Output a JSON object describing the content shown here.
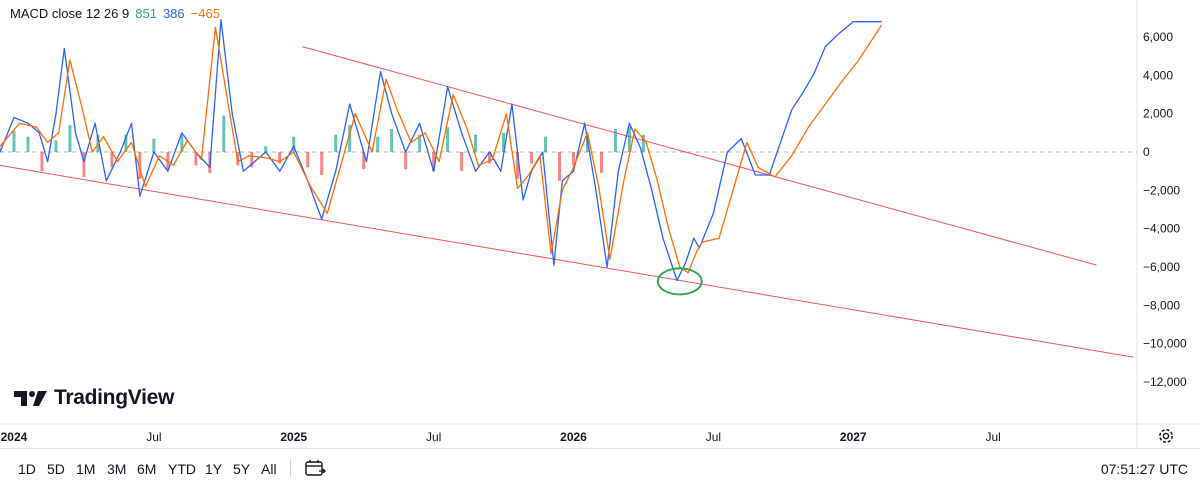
{
  "legend": {
    "label": "MACD close 12 26 9",
    "hist": "851",
    "macd": "386",
    "signal": "−465",
    "colors": {
      "hist": "#26a69a",
      "macd": "#2962ff",
      "signal": "#ff6d00"
    }
  },
  "brand": {
    "name": "TradingView"
  },
  "toolbar": {
    "timeframes": [
      "1D",
      "5D",
      "1M",
      "3M",
      "6M",
      "YTD",
      "1Y",
      "5Y",
      "All"
    ],
    "time": "07:51:27 UTC"
  },
  "icons": {
    "calendar": "calendar-icon",
    "settings": "gear-icon",
    "logo": "tradingview-logo-icon"
  },
  "chart_data": {
    "type": "line",
    "x_ticks": [
      "2024",
      "Jul",
      "2025",
      "Jul",
      "2026",
      "Jul",
      "2027",
      "Jul"
    ],
    "y_ticks": [
      "6,000",
      "4,000",
      "2,000",
      "0",
      "−2,000",
      "−4,000",
      "−6,000",
      "−8,000",
      "−10,000",
      "−12,000"
    ],
    "ylim": [
      -13500,
      8000
    ],
    "series": [
      {
        "name": "MACD",
        "color": "#2962ff",
        "x": [
          2023.95,
          2024.0,
          2024.05,
          2024.09,
          2024.12,
          2024.15,
          2024.18,
          2024.22,
          2024.25,
          2024.29,
          2024.33,
          2024.38,
          2024.42,
          2024.45,
          2024.5,
          2024.55,
          2024.6,
          2024.65,
          2024.7,
          2024.74,
          2024.78,
          2024.82,
          2024.86,
          2024.9,
          2024.95,
          2025.0,
          2025.05,
          2025.1,
          2025.15,
          2025.2,
          2025.26,
          2025.31,
          2025.35,
          2025.4,
          2025.45,
          2025.5,
          2025.55,
          2025.6,
          2025.65,
          2025.7,
          2025.74,
          2025.78,
          2025.82,
          2025.85,
          2025.89,
          2025.93,
          2025.96,
          2026.0,
          2026.04,
          2026.08,
          2026.12,
          2026.16,
          2026.2,
          2026.24,
          2026.28,
          2026.32,
          2026.37,
          2026.4,
          2026.43,
          2026.45,
          2026.5,
          2026.55,
          2026.6,
          2026.65,
          2026.7,
          2026.74,
          2026.78,
          2026.82,
          2026.86,
          2026.9,
          2026.95,
          2027.0,
          2027.05,
          2027.1
        ],
        "values": [
          0,
          1800,
          1500,
          1000,
          -500,
          2000,
          5400,
          1000,
          -500,
          1500,
          -1500,
          0,
          1500,
          -2300,
          0,
          -1000,
          1000,
          0,
          -800,
          6900,
          2000,
          -1000,
          -500,
          0,
          -1000,
          300,
          -1500,
          -3500,
          -1000,
          2500,
          -500,
          4200,
          2000,
          0,
          1500,
          -1000,
          3400,
          1000,
          -1000,
          0,
          -1000,
          2500,
          -2500,
          -1000,
          0,
          -5900,
          -1500,
          -1000,
          1500,
          -2000,
          -6000,
          -1000,
          1500,
          200,
          -2000,
          -4500,
          -6700,
          -5800,
          -4500,
          -5000,
          -3200,
          0,
          700,
          -1200,
          -1200,
          500,
          2200,
          3100,
          4100,
          5500,
          6200,
          6800,
          6800,
          6800
        ]
      },
      {
        "name": "Signal",
        "color": "#ff6d00",
        "x": [
          2023.95,
          2024.02,
          2024.08,
          2024.12,
          2024.16,
          2024.2,
          2024.24,
          2024.28,
          2024.32,
          2024.37,
          2024.42,
          2024.47,
          2024.52,
          2024.57,
          2024.62,
          2024.67,
          2024.72,
          2024.76,
          2024.8,
          2024.84,
          2024.9,
          2024.95,
          2025.0,
          2025.06,
          2025.12,
          2025.17,
          2025.22,
          2025.28,
          2025.33,
          2025.37,
          2025.42,
          2025.47,
          2025.52,
          2025.57,
          2025.62,
          2025.66,
          2025.71,
          2025.76,
          2025.8,
          2025.84,
          2025.88,
          2025.92,
          2025.96,
          2026.0,
          2026.05,
          2026.09,
          2026.13,
          2026.18,
          2026.22,
          2026.26,
          2026.3,
          2026.34,
          2026.38,
          2026.41,
          2026.44,
          2026.46,
          2026.52,
          2026.57,
          2026.62,
          2026.66,
          2026.72,
          2026.78,
          2026.84,
          2026.9,
          2026.96,
          2027.02,
          2027.06,
          2027.1
        ],
        "values": [
          300,
          1500,
          1300,
          500,
          1000,
          4800,
          2500,
          0,
          800,
          -500,
          500,
          -1800,
          -200,
          -700,
          600,
          -400,
          6500,
          3000,
          -500,
          -200,
          -300,
          -500,
          0,
          -1800,
          -3200,
          -600,
          2000,
          0,
          3800,
          2200,
          500,
          1000,
          -500,
          3000,
          1200,
          -700,
          -400,
          2000,
          -1900,
          -1200,
          -200,
          -5300,
          -2000,
          -800,
          1000,
          -1800,
          -5600,
          -1500,
          1200,
          500,
          -1500,
          -4000,
          -6000,
          -6300,
          -5200,
          -4700,
          -4500,
          -2000,
          500,
          -800,
          -1300,
          -200,
          1300,
          2500,
          3700,
          4800,
          5700,
          6600
        ]
      }
    ],
    "histogram": {
      "x": [
        2023.95,
        2024.0,
        2024.05,
        2024.1,
        2024.15,
        2024.2,
        2024.25,
        2024.3,
        2024.35,
        2024.4,
        2024.45,
        2024.5,
        2024.55,
        2024.6,
        2024.65,
        2024.7,
        2024.75,
        2024.8,
        2024.85,
        2024.9,
        2024.95,
        2025.0,
        2025.05,
        2025.1,
        2025.15,
        2025.2,
        2025.25,
        2025.3,
        2025.35,
        2025.4,
        2025.45,
        2025.5,
        2025.55,
        2025.6,
        2025.65,
        2025.7,
        2025.75,
        2025.8,
        2025.85,
        2025.9,
        2025.95,
        2026.0,
        2026.05,
        2026.1,
        2026.15,
        2026.2,
        2026.25
      ],
      "values": [
        200,
        1100,
        800,
        -1000,
        600,
        1400,
        -1300,
        900,
        -800,
        900,
        -1400,
        700,
        -900,
        900,
        -700,
        -1100,
        1900,
        -700,
        -800,
        300,
        -600,
        800,
        -800,
        -1200,
        900,
        1400,
        -900,
        800,
        1200,
        -900,
        900,
        -1000,
        1300,
        -1000,
        900,
        -600,
        1000,
        -1400,
        -600,
        800,
        -1500,
        -700,
        900,
        -1100,
        1200,
        1300,
        900
      ]
    },
    "trendlines": {
      "upper": [
        [
          2025.03,
          5500
        ],
        [
          2027.87,
          -5900
        ]
      ],
      "lower": [
        [
          2023.95,
          -700
        ],
        [
          2028.0,
          -10700
        ]
      ]
    },
    "annotation": {
      "shape": "ellipse",
      "color": "#34a853",
      "x": 2026.38,
      "y": -6750
    }
  }
}
